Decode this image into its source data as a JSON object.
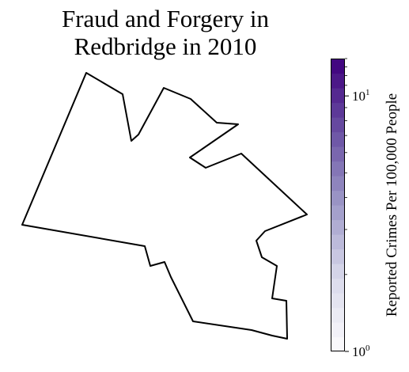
{
  "title": {
    "line1": "Fraud and Forgery in",
    "line2": "Redbridge in 2010"
  },
  "map": {
    "region_name": "Redbridge",
    "outline_color": "#000000",
    "fill_color": "#ffffff"
  },
  "colorbar": {
    "label": "Reported Crimes Per 100,000 People",
    "scale": "log",
    "range": [
      1,
      14
    ],
    "colormap": "Purples",
    "ticks": [
      {
        "value": 1,
        "base": "10",
        "exponent": "0"
      },
      {
        "value": 10,
        "base": "10",
        "exponent": "1"
      }
    ]
  }
}
